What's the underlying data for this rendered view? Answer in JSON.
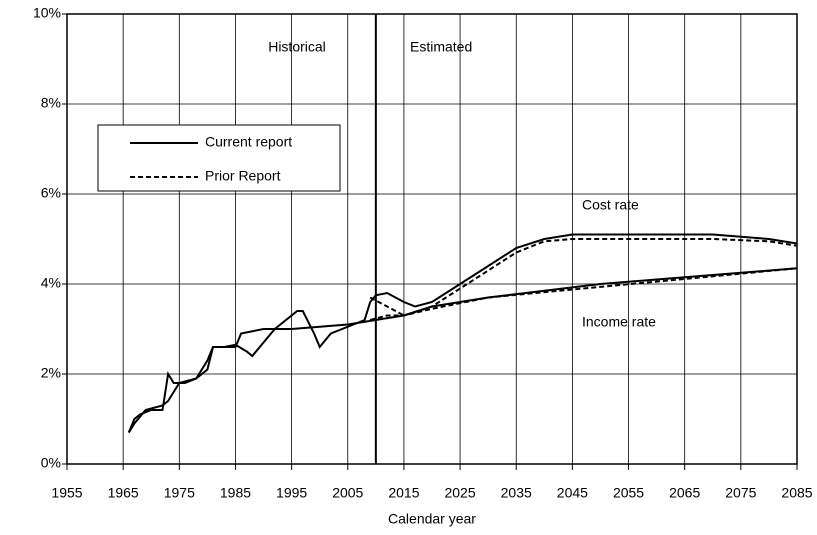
{
  "chart_data": {
    "type": "line",
    "xlabel": "Calendar year",
    "xlim": [
      1955,
      2085
    ],
    "xticks": [
      1955,
      1965,
      1975,
      1985,
      1995,
      2005,
      2015,
      2025,
      2035,
      2045,
      2055,
      2065,
      2075,
      2085
    ],
    "ylim": [
      0,
      10
    ],
    "yticks": [
      {
        "value": 0,
        "label": "0%"
      },
      {
        "value": 2,
        "label": "2%"
      },
      {
        "value": 4,
        "label": "4%"
      },
      {
        "value": 6,
        "label": "6%"
      },
      {
        "value": 8,
        "label": "8%"
      },
      {
        "value": 10,
        "label": "10%"
      }
    ],
    "grid": true,
    "divider_x": 2010,
    "annotations": [
      "Historical",
      "Estimated",
      "Cost rate",
      "Income rate"
    ],
    "legend": "upper left",
    "series": [
      {
        "name": "Current report",
        "color": "#000000",
        "dash": "solid",
        "cost_rate": {
          "x": [
            1966,
            1967,
            1968,
            1970,
            1972,
            1973,
            1974,
            1976,
            1978,
            1980,
            1981,
            1983,
            1985,
            1987,
            1988,
            1990,
            1992,
            1994,
            1996,
            1997,
            1999,
            2000,
            2002,
            2004,
            2006,
            2008,
            2009,
            2010,
            2012,
            2015,
            2017,
            2020,
            2025,
            2030,
            2035,
            2040,
            2045,
            2050,
            2060,
            2070,
            2080,
            2085
          ],
          "values": [
            0.7,
            1.0,
            1.1,
            1.2,
            1.2,
            2.0,
            1.8,
            1.8,
            1.9,
            2.1,
            2.6,
            2.6,
            2.65,
            2.5,
            2.4,
            2.7,
            3.0,
            3.2,
            3.4,
            3.4,
            2.9,
            2.6,
            2.9,
            3.0,
            3.1,
            3.2,
            3.6,
            3.75,
            3.8,
            3.6,
            3.5,
            3.6,
            4.0,
            4.4,
            4.8,
            5.0,
            5.1,
            5.1,
            5.1,
            5.1,
            5.0,
            4.9
          ]
        },
        "income_rate": {
          "x": [
            1966,
            1967,
            1969,
            1972,
            1973,
            1975,
            1978,
            1980,
            1981,
            1985,
            1986,
            1990,
            1995,
            2000,
            2005,
            2010,
            2015,
            2020,
            2030,
            2040,
            2050,
            2060,
            2070,
            2085
          ],
          "values": [
            0.7,
            0.9,
            1.2,
            1.3,
            1.4,
            1.8,
            1.9,
            2.3,
            2.6,
            2.6,
            2.9,
            3.0,
            3.0,
            3.05,
            3.1,
            3.2,
            3.3,
            3.5,
            3.7,
            3.85,
            4.0,
            4.1,
            4.2,
            4.35
          ]
        }
      },
      {
        "name": "Prior Report",
        "color": "#000000",
        "dash": "dashed",
        "cost_rate": {
          "x": [
            2009,
            2012,
            2015,
            2020,
            2025,
            2030,
            2035,
            2040,
            2045,
            2060,
            2070,
            2080,
            2085
          ],
          "values": [
            3.7,
            3.5,
            3.3,
            3.5,
            3.9,
            4.3,
            4.7,
            4.95,
            5.0,
            5.0,
            5.0,
            4.95,
            4.85
          ]
        },
        "income_rate": {
          "x": [
            2009,
            2012,
            2015,
            2020,
            2030,
            2085
          ],
          "values": [
            3.2,
            3.3,
            3.3,
            3.45,
            3.7,
            4.35
          ]
        }
      }
    ]
  }
}
